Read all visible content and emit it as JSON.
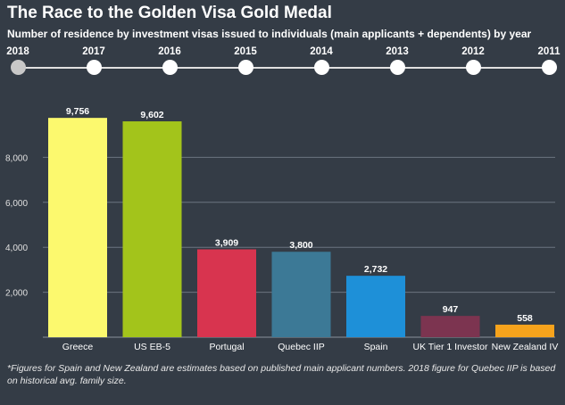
{
  "title": "The Race to the Golden Visa Gold Medal",
  "subtitle": "Number of residence by investment visas issued to individuals (main applicants + dependents) by year",
  "timeline": {
    "selected": "2018",
    "years": [
      "2018",
      "2017",
      "2016",
      "2015",
      "2014",
      "2013",
      "2012",
      "2011"
    ]
  },
  "chart_data": {
    "type": "bar",
    "title": "",
    "xlabel": "",
    "ylabel": "",
    "categories": [
      "Greece",
      "US EB-5",
      "Portugal",
      "Quebec IIP",
      "Spain",
      "UK Tier 1 Investor",
      "New Zealand IV"
    ],
    "values": [
      9756,
      9602,
      3909,
      3800,
      2732,
      947,
      558
    ],
    "value_labels": [
      "9,756",
      "9,602",
      "3,909",
      "3,800",
      "2,732",
      "947",
      "558"
    ],
    "colors": [
      "#fcf96e",
      "#a3c41b",
      "#d8344f",
      "#3c7996",
      "#1e90d8",
      "#7c3450",
      "#f6a31c"
    ],
    "ylim": [
      0,
      10000
    ],
    "yticks": [
      2000,
      4000,
      6000,
      8000
    ],
    "ytick_labels": [
      "2,000",
      "4,000",
      "6,000",
      "8,000"
    ],
    "grid": true,
    "legend": "none"
  },
  "footnote": "*Figures for Spain and New Zealand are estimates based on published main applicant numbers. 2018 figure for Quebec IIP is based on historical avg. family size."
}
